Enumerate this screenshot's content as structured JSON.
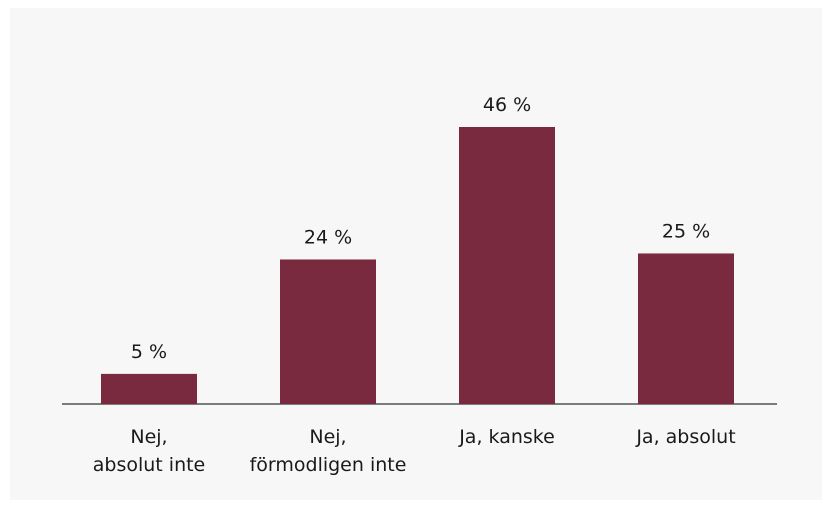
{
  "chart_data": {
    "type": "bar",
    "categories": [
      "Nej,\nabsolut inte",
      "Nej,\nförmodligen inte",
      "Ja, kanske",
      "Ja, absolut"
    ],
    "values": [
      5,
      24,
      46,
      25
    ],
    "value_labels": [
      "5 %",
      "24 %",
      "46 %",
      "25 %"
    ],
    "color": "#7a2a3f"
  }
}
